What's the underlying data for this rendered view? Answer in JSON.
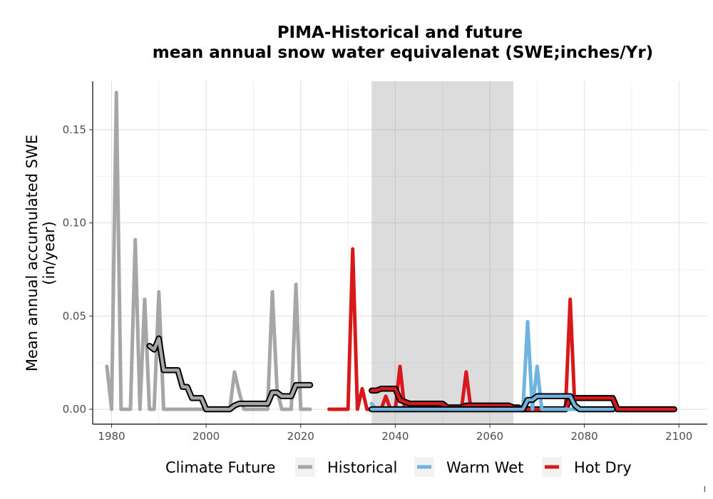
{
  "chart_data": {
    "type": "line",
    "title_line1": "PIMA-Historical and future",
    "title_line2": "mean annual snow water equivalenat (SWE;inches/Yr)",
    "xlabel": "",
    "ylabel_line1": "Mean annual accumulated SWE",
    "ylabel_line2": "(in/year)",
    "xlim": [
      1976,
      2106
    ],
    "ylim": [
      -0.008,
      0.176
    ],
    "x_ticks": [
      1980,
      2000,
      2020,
      2040,
      2060,
      2080,
      2100
    ],
    "x_tick_labels": [
      "1980",
      "2000",
      "2020",
      "2040",
      "2060",
      "2080",
      "2100"
    ],
    "y_ticks": [
      0.0,
      0.05,
      0.1,
      0.15
    ],
    "y_tick_labels": [
      "0.00",
      "0.05",
      "0.10",
      "0.15"
    ],
    "grid": true,
    "shaded_period": [
      2035,
      2065
    ],
    "legend": {
      "title": "Climate Future",
      "position": "bottom",
      "entries": [
        {
          "label": "Historical",
          "color": "#A6A6A6"
        },
        {
          "label": "Warm Wet",
          "color": "#6FB4E0"
        },
        {
          "label": "Hot Dry",
          "color": "#D7191C"
        }
      ]
    },
    "series": [
      {
        "name": "Historical",
        "color": "#A6A6A6",
        "x": [
          1979,
          1980,
          1981,
          1982,
          1983,
          1984,
          1985,
          1986,
          1987,
          1988,
          1989,
          1990,
          1991,
          1992,
          1993,
          1994,
          1995,
          1996,
          1997,
          1998,
          1999,
          2000,
          2001,
          2002,
          2003,
          2004,
          2005,
          2006,
          2007,
          2008,
          2009,
          2010,
          2011,
          2012,
          2013,
          2014,
          2015,
          2016,
          2017,
          2018,
          2019,
          2020,
          2021,
          2022
        ],
        "values": [
          0.023,
          0.0,
          0.17,
          0.0,
          0.0,
          0.0,
          0.091,
          0.0,
          0.059,
          0.0,
          0.0,
          0.063,
          0.0,
          0.0,
          0.0,
          0.0,
          0.0,
          0.0,
          0.0,
          0.0,
          0.0,
          0.0,
          0.0,
          0.0,
          0.0,
          0.0,
          0.0,
          0.02,
          0.009,
          0.0,
          0.0,
          0.0,
          0.0,
          0.0,
          0.0,
          0.063,
          0.01,
          0.0,
          0.0,
          0.0,
          0.067,
          0.0,
          0.0,
          0.0
        ]
      },
      {
        "name": "Historical",
        "color": "#000000",
        "smoothed": true,
        "x": [
          1988,
          1989,
          1990,
          1991,
          1992,
          1993,
          1994,
          1995,
          1996,
          1997,
          1998,
          1999,
          2000,
          2001,
          2002,
          2003,
          2004,
          2005,
          2006,
          2007,
          2008,
          2009,
          2010,
          2011,
          2012,
          2013,
          2014,
          2015,
          2016,
          2017,
          2018,
          2019,
          2020,
          2021,
          2022
        ],
        "values": [
          0.034,
          0.032,
          0.038,
          0.021,
          0.021,
          0.021,
          0.021,
          0.012,
          0.012,
          0.006,
          0.006,
          0.006,
          0.0,
          0.0,
          0.0,
          0.0,
          0.0,
          0.0,
          0.002,
          0.003,
          0.003,
          0.003,
          0.003,
          0.003,
          0.003,
          0.003,
          0.009,
          0.009,
          0.007,
          0.007,
          0.007,
          0.013,
          0.013,
          0.013,
          0.013
        ]
      },
      {
        "name": "Hot Dry",
        "color": "#D7191C",
        "x": [
          2026,
          2027,
          2028,
          2029,
          2030,
          2031,
          2032,
          2033,
          2034,
          2035,
          2036,
          2037,
          2038,
          2039,
          2040,
          2041,
          2042,
          2043,
          2044,
          2045,
          2046,
          2047,
          2048,
          2049,
          2050,
          2051,
          2052,
          2053,
          2054,
          2055,
          2056,
          2057,
          2058,
          2059,
          2060,
          2061,
          2062,
          2063,
          2064,
          2065,
          2066,
          2067,
          2068,
          2069,
          2070,
          2071,
          2072,
          2073,
          2074,
          2075,
          2076,
          2077,
          2078,
          2079,
          2080,
          2081,
          2082,
          2083,
          2084,
          2085,
          2086,
          2087,
          2088,
          2089,
          2090,
          2091,
          2092,
          2093,
          2094,
          2095,
          2096,
          2097,
          2098,
          2099
        ],
        "values": [
          0.0,
          0.0,
          0.0,
          0.0,
          0.0,
          0.086,
          0.0,
          0.011,
          0.0,
          0.0,
          0.0,
          0.0,
          0.007,
          0.0,
          0.0,
          0.023,
          0.0,
          0.0,
          0.0,
          0.0,
          0.0,
          0.0,
          0.0,
          0.003,
          0.0,
          0.0,
          0.0,
          0.0,
          0.0,
          0.02,
          0.0,
          0.0,
          0.0,
          0.0,
          0.0,
          0.0,
          0.0,
          0.0,
          0.0,
          0.0,
          0.0,
          0.0,
          0.0,
          0.0,
          0.0,
          0.0,
          0.0,
          0.0,
          0.0,
          0.0,
          0.0,
          0.059,
          0.0,
          0.0,
          0.0,
          0.0,
          0.0,
          0.0,
          0.0,
          0.0,
          0.0,
          0.0,
          0.0,
          0.0,
          0.0,
          0.0,
          0.0,
          0.0,
          0.0,
          0.0,
          0.0,
          0.0,
          0.0,
          0.0
        ]
      },
      {
        "name": "Hot Dry",
        "color": "#000000",
        "smoothed": true,
        "x": [
          2035,
          2036,
          2037,
          2038,
          2039,
          2040,
          2041,
          2042,
          2043,
          2044,
          2045,
          2046,
          2047,
          2048,
          2049,
          2050,
          2051,
          2052,
          2053,
          2054,
          2055,
          2056,
          2057,
          2058,
          2059,
          2060,
          2061,
          2062,
          2063,
          2064,
          2065,
          2066,
          2067,
          2068,
          2069,
          2070,
          2071,
          2072,
          2073,
          2074,
          2075,
          2076,
          2077,
          2078,
          2079,
          2080,
          2081,
          2082,
          2083,
          2084,
          2085,
          2086,
          2087,
          2088,
          2089,
          2090,
          2091,
          2092,
          2093,
          2094,
          2095,
          2096,
          2097,
          2098,
          2099
        ],
        "values": [
          0.01,
          0.01,
          0.011,
          0.011,
          0.011,
          0.011,
          0.005,
          0.004,
          0.003,
          0.003,
          0.003,
          0.003,
          0.003,
          0.003,
          0.003,
          0.003,
          0.001,
          0.001,
          0.001,
          0.001,
          0.002,
          0.002,
          0.002,
          0.002,
          0.002,
          0.002,
          0.002,
          0.002,
          0.002,
          0.002,
          0.001,
          0.001,
          0.0,
          0.0,
          0.0,
          0.0,
          0.0,
          0.0,
          0.0,
          0.0,
          0.0,
          0.0,
          0.006,
          0.006,
          0.006,
          0.006,
          0.006,
          0.006,
          0.006,
          0.006,
          0.006,
          0.006,
          0.0,
          0.0,
          0.0,
          0.0,
          0.0,
          0.0,
          0.0,
          0.0,
          0.0,
          0.0,
          0.0,
          0.0,
          0.0
        ]
      },
      {
        "name": "Warm Wet",
        "color": "#6FB4E0",
        "x": [
          2035,
          2036,
          2037,
          2038,
          2039,
          2040,
          2041,
          2042,
          2043,
          2044,
          2045,
          2046,
          2047,
          2048,
          2049,
          2050,
          2051,
          2052,
          2053,
          2054,
          2055,
          2056,
          2057,
          2058,
          2059,
          2060,
          2061,
          2062,
          2063,
          2064,
          2065,
          2066,
          2067,
          2068,
          2069,
          2070,
          2071,
          2072,
          2073,
          2074,
          2075,
          2076,
          2077,
          2078,
          2079,
          2080,
          2081,
          2082,
          2083,
          2084,
          2085,
          2086
        ],
        "values": [
          0.003,
          0.0,
          0.0,
          0.0,
          0.0,
          0.0,
          0.0,
          0.0,
          0.0,
          0.0,
          0.0,
          0.0,
          0.0,
          0.0,
          0.0,
          0.0,
          0.0,
          0.0,
          0.0,
          0.0,
          0.0,
          0.0,
          0.0,
          0.0,
          0.0,
          0.0,
          0.0,
          0.0,
          0.0,
          0.0,
          0.0,
          0.0,
          0.0,
          0.047,
          0.0,
          0.023,
          0.0,
          0.0,
          0.0,
          0.0,
          0.0,
          0.0,
          0.0,
          0.0,
          0.0,
          0.0,
          0.0,
          0.0,
          0.0,
          0.0,
          0.0,
          0.0
        ]
      },
      {
        "name": "Warm Wet",
        "color": "#000000",
        "smoothed": true,
        "x": [
          2035,
          2036,
          2037,
          2038,
          2039,
          2040,
          2041,
          2042,
          2043,
          2044,
          2045,
          2046,
          2047,
          2048,
          2049,
          2050,
          2051,
          2052,
          2053,
          2054,
          2055,
          2056,
          2057,
          2058,
          2059,
          2060,
          2061,
          2062,
          2063,
          2064,
          2065,
          2066,
          2067,
          2068,
          2069,
          2070,
          2071,
          2072,
          2073,
          2074,
          2075,
          2076,
          2077,
          2078,
          2079,
          2080,
          2081,
          2082,
          2083,
          2084,
          2085,
          2086
        ],
        "values": [
          0.0,
          0.0,
          0.0,
          0.0,
          0.0,
          0.0,
          0.0,
          0.0,
          0.0,
          0.0,
          0.0,
          0.0,
          0.0,
          0.0,
          0.0,
          0.0,
          0.0,
          0.0,
          0.0,
          0.0,
          0.0,
          0.0,
          0.0,
          0.0,
          0.0,
          0.0,
          0.0,
          0.0,
          0.0,
          0.0,
          0.0,
          0.0,
          0.0,
          0.005,
          0.005,
          0.007,
          0.007,
          0.007,
          0.007,
          0.007,
          0.007,
          0.007,
          0.007,
          0.002,
          0.0,
          0.0,
          0.0,
          0.0,
          0.0,
          0.0,
          0.0,
          0.0
        ]
      }
    ]
  }
}
